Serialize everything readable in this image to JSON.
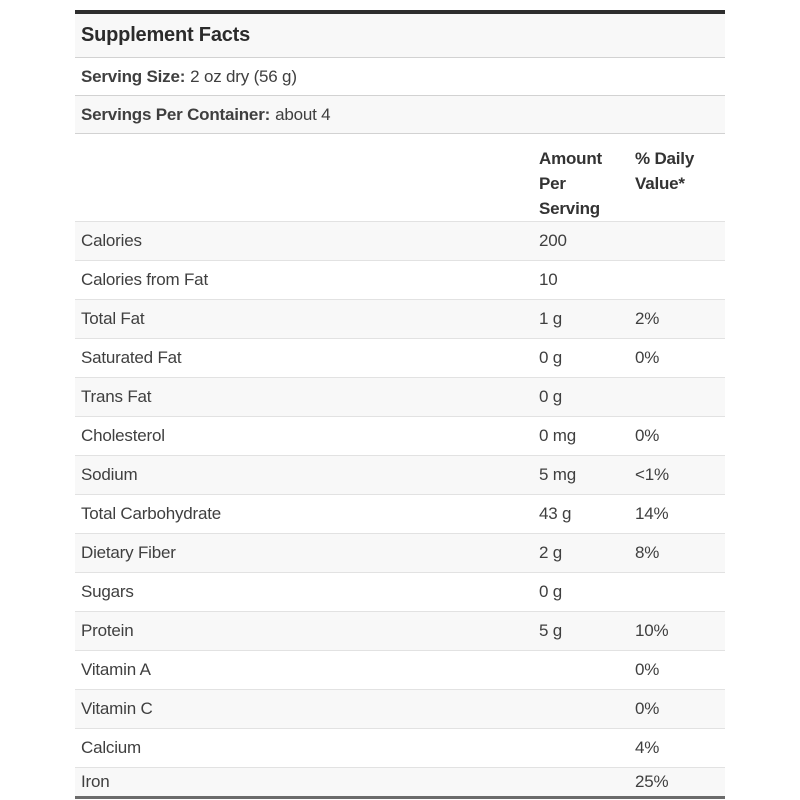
{
  "title": "Supplement Facts",
  "serving_size": {
    "label": "Serving Size:",
    "value": "2 oz dry (56 g)"
  },
  "servings_per_container": {
    "label": "Servings Per Container:",
    "value": "about 4"
  },
  "columns": {
    "amount": "Amount\nPer\nServing",
    "daily_value": "% Daily\nValue*"
  },
  "rows": [
    {
      "name": "Calories",
      "amount": "200",
      "dv": ""
    },
    {
      "name": "Calories from Fat",
      "amount": "10",
      "dv": ""
    },
    {
      "name": "Total Fat",
      "amount": "1 g",
      "dv": "2%"
    },
    {
      "name": "Saturated Fat",
      "amount": "0 g",
      "dv": "0%"
    },
    {
      "name": "Trans Fat",
      "amount": "0 g",
      "dv": ""
    },
    {
      "name": "Cholesterol",
      "amount": "0 mg",
      "dv": "0%"
    },
    {
      "name": "Sodium",
      "amount": "5 mg",
      "dv": "<1%"
    },
    {
      "name": "Total Carbohydrate",
      "amount": "43 g",
      "dv": "14%"
    },
    {
      "name": "Dietary Fiber",
      "amount": "2 g",
      "dv": "8%"
    },
    {
      "name": "Sugars",
      "amount": "0 g",
      "dv": ""
    },
    {
      "name": "Protein",
      "amount": "5 g",
      "dv": "10%"
    },
    {
      "name": "Vitamin A",
      "amount": "",
      "dv": "0%"
    },
    {
      "name": "Vitamin C",
      "amount": "",
      "dv": "0%"
    },
    {
      "name": "Calcium",
      "amount": "",
      "dv": "4%"
    },
    {
      "name": "Iron",
      "amount": "",
      "dv": "25%"
    }
  ],
  "colors": {
    "stripe": "#f8f8f8",
    "border_top": "#2e2e2e",
    "border_bottom": "#6b6b6b",
    "row_separator": "#e2e2e2",
    "text": "#3f3f3f"
  }
}
